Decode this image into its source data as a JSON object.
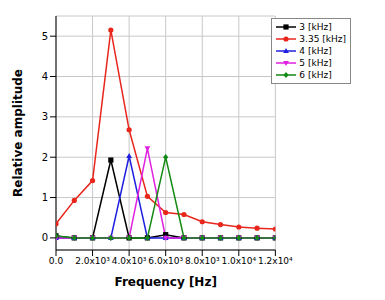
{
  "chart_data": {
    "type": "line",
    "x_label": "Frequency [Hz]",
    "y_label": "Relative amplitude",
    "x": [
      0,
      1000,
      2000,
      3000,
      4000,
      5000,
      6000,
      7000,
      8000,
      9000,
      10000,
      11000,
      12000
    ],
    "series": [
      {
        "name": "3 [kHz]",
        "color": "#000000",
        "marker": "square",
        "values": [
          0.05,
          0,
          0,
          1.93,
          0,
          0,
          0.08,
          0,
          0,
          0,
          0,
          0,
          0
        ]
      },
      {
        "name": "3.35 [kHz]",
        "color": "#e8261c",
        "marker": "circle",
        "values": [
          0.35,
          0.93,
          1.42,
          5.15,
          2.68,
          1.03,
          0.63,
          0.58,
          0.4,
          0.33,
          0.27,
          0.24,
          0.22
        ]
      },
      {
        "name": "4 [kHz]",
        "color": "#1f1fe0",
        "marker": "triangle",
        "values": [
          0,
          0,
          0,
          0,
          2.03,
          0,
          0,
          0,
          0,
          0,
          0,
          0,
          0
        ]
      },
      {
        "name": "5 [kHz]",
        "color": "#e020e0",
        "marker": "triangle-down",
        "values": [
          0,
          0,
          0,
          0,
          0,
          2.22,
          0,
          0,
          0,
          0,
          0,
          0,
          0
        ]
      },
      {
        "name": "6 [kHz]",
        "color": "#138a13",
        "marker": "diamond",
        "values": [
          0.05,
          0,
          0,
          0,
          0,
          0,
          2.0,
          0,
          0,
          0,
          0,
          0,
          0
        ]
      }
    ],
    "xlim": [
      0,
      12000
    ],
    "xticks": [
      {
        "value": 0,
        "label": "0.0"
      },
      {
        "value": 2000,
        "label": "2.0x10³"
      },
      {
        "value": 4000,
        "label": "4.0x10³"
      },
      {
        "value": 6000,
        "label": "6.0x10³"
      },
      {
        "value": 8000,
        "label": "8.0x10³"
      },
      {
        "value": 10000,
        "label": "1.0x10⁴"
      },
      {
        "value": 12000,
        "label": "1.2x10⁴"
      }
    ],
    "ylim": [
      -0.3,
      5.5
    ],
    "yticks": [
      0,
      1,
      2,
      3,
      4,
      5
    ],
    "grid": true,
    "legend": "upper right"
  }
}
